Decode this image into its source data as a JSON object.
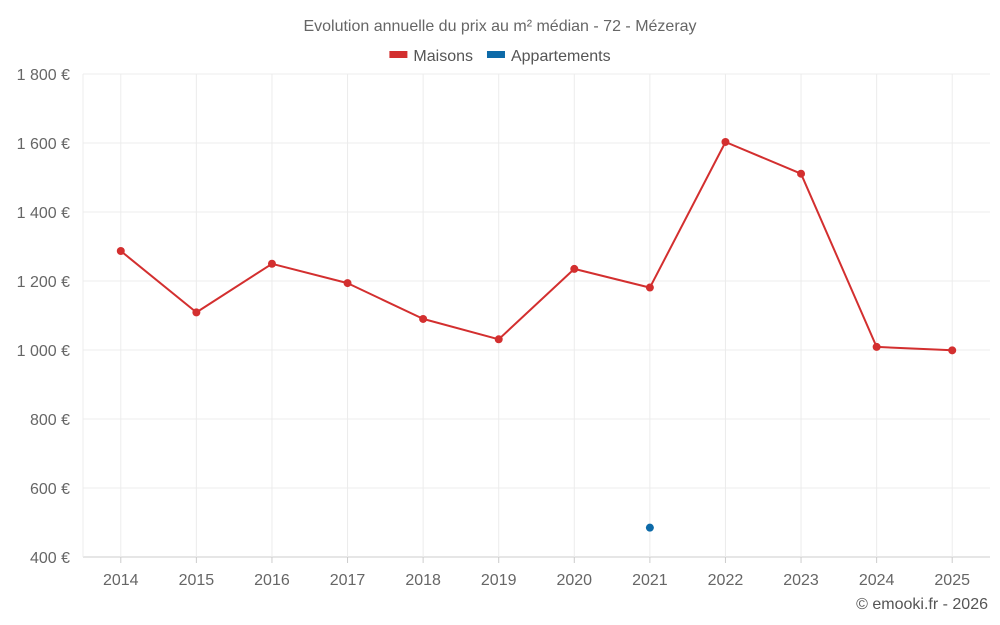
{
  "chart_data": {
    "type": "line",
    "title": "Evolution annuelle du prix au m² médian - 72 - Mézeray",
    "categories": [
      "2014",
      "2015",
      "2016",
      "2017",
      "2018",
      "2019",
      "2020",
      "2021",
      "2022",
      "2023",
      "2024",
      "2025"
    ],
    "series": [
      {
        "name": "Maisons",
        "color": "#d32f2f",
        "values": [
          1287,
          1109,
          1250,
          1194,
          1090,
          1031,
          1235,
          1181,
          1603,
          1511,
          1009,
          999
        ]
      },
      {
        "name": "Appartements",
        "color": "#0d6aa8",
        "values": [
          null,
          null,
          null,
          null,
          null,
          null,
          null,
          485,
          null,
          null,
          null,
          null
        ]
      }
    ],
    "ylim": [
      400,
      1800
    ],
    "yticks": [
      400,
      600,
      800,
      1000,
      1200,
      1400,
      1600,
      1800
    ],
    "ytick_labels": [
      "400 €",
      "600 €",
      "800 €",
      "1 000 €",
      "1 200 €",
      "1 400 €",
      "1 600 €",
      "1 800 €"
    ],
    "xlabel": "",
    "ylabel": "",
    "grid": true,
    "legend_position": "top-center"
  },
  "credit": "© emooki.fr - 2026"
}
